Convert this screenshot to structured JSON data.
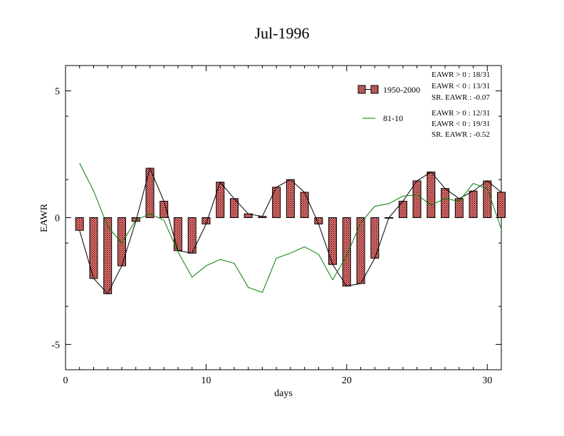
{
  "chart_data": {
    "type": "bar",
    "title": "Jul-1996",
    "xlabel": "days",
    "ylabel": "EAWR",
    "xlim": [
      0,
      31
    ],
    "ylim": [
      -6,
      6
    ],
    "x_ticks": [
      0,
      10,
      20,
      30
    ],
    "y_ticks": [
      -5,
      0,
      5
    ],
    "grid": false,
    "legend_position": "top-right",
    "days": [
      1,
      2,
      3,
      4,
      5,
      6,
      7,
      8,
      9,
      10,
      11,
      12,
      13,
      14,
      15,
      16,
      17,
      18,
      19,
      20,
      21,
      22,
      23,
      24,
      25,
      26,
      27,
      28,
      29,
      30,
      31
    ],
    "series": [
      {
        "name": "1950-2000",
        "kind": "bar",
        "color": "#e06060",
        "values": [
          -0.5,
          -2.4,
          -3.0,
          -1.9,
          -0.15,
          1.95,
          0.65,
          -1.3,
          -1.4,
          -0.25,
          1.4,
          0.75,
          0.15,
          0.05,
          1.2,
          1.5,
          1.0,
          -0.25,
          -1.85,
          -2.7,
          -2.6,
          -1.6,
          0.0,
          0.65,
          1.45,
          1.8,
          1.15,
          0.75,
          1.05,
          1.45,
          1.0
        ]
      },
      {
        "name": "81-10",
        "kind": "line",
        "color": "#008000",
        "values": [
          2.15,
          1.05,
          -0.35,
          -1.0,
          -0.1,
          0.15,
          -0.1,
          -1.35,
          -2.35,
          -1.9,
          -1.65,
          -1.8,
          -2.75,
          -2.95,
          -1.6,
          -1.4,
          -1.15,
          -1.45,
          -2.45,
          -1.5,
          -0.2,
          0.45,
          0.55,
          0.85,
          0.9,
          0.5,
          0.75,
          0.65,
          1.35,
          1.15,
          -0.45
        ]
      }
    ],
    "stats": [
      [
        "EAWR > 0 : 18/31",
        "EAWR < 0 : 13/31",
        "SR. EAWR : -0.07"
      ],
      [
        "EAWR > 0 : 12/31",
        "EAWR < 0 : 19/31",
        "SR. EAWR : -0.52"
      ]
    ]
  }
}
